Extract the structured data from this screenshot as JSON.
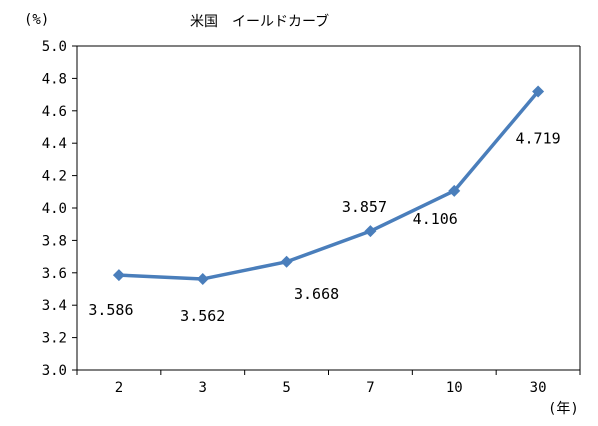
{
  "chart_data": {
    "type": "line",
    "title": "米国　イールドカーブ",
    "y_unit": "(%)",
    "x_unit": "(年)",
    "categories": [
      "2",
      "3",
      "5",
      "7",
      "10",
      "30"
    ],
    "series": [
      {
        "values": [
          3.586,
          3.562,
          3.668,
          3.857,
          4.106,
          4.719
        ],
        "data_labels": [
          "3.586",
          "3.562",
          "3.668",
          "3.857",
          "4.106",
          "4.719"
        ],
        "color": "#4a7ebb",
        "marker": "diamond"
      }
    ],
    "ylim": [
      3.0,
      5.0
    ],
    "y_ticks": [
      "3.0",
      "3.2",
      "3.4",
      "3.6",
      "3.8",
      "4.0",
      "4.2",
      "4.4",
      "4.6",
      "4.8",
      "5.0"
    ],
    "grid": false,
    "legend": "none"
  }
}
